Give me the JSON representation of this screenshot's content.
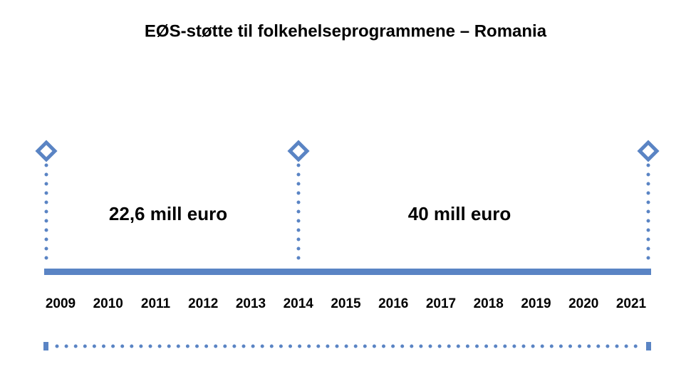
{
  "title": "EØS-støtte til folkehelseprogrammene – Romania",
  "periods": [
    {
      "label": "22,6 mill euro"
    },
    {
      "label": "40 mill euro"
    }
  ],
  "years": [
    "2009",
    "2010",
    "2011",
    "2012",
    "2013",
    "2014",
    "2015",
    "2016",
    "2017",
    "2018",
    "2019",
    "2020",
    "2021"
  ]
}
